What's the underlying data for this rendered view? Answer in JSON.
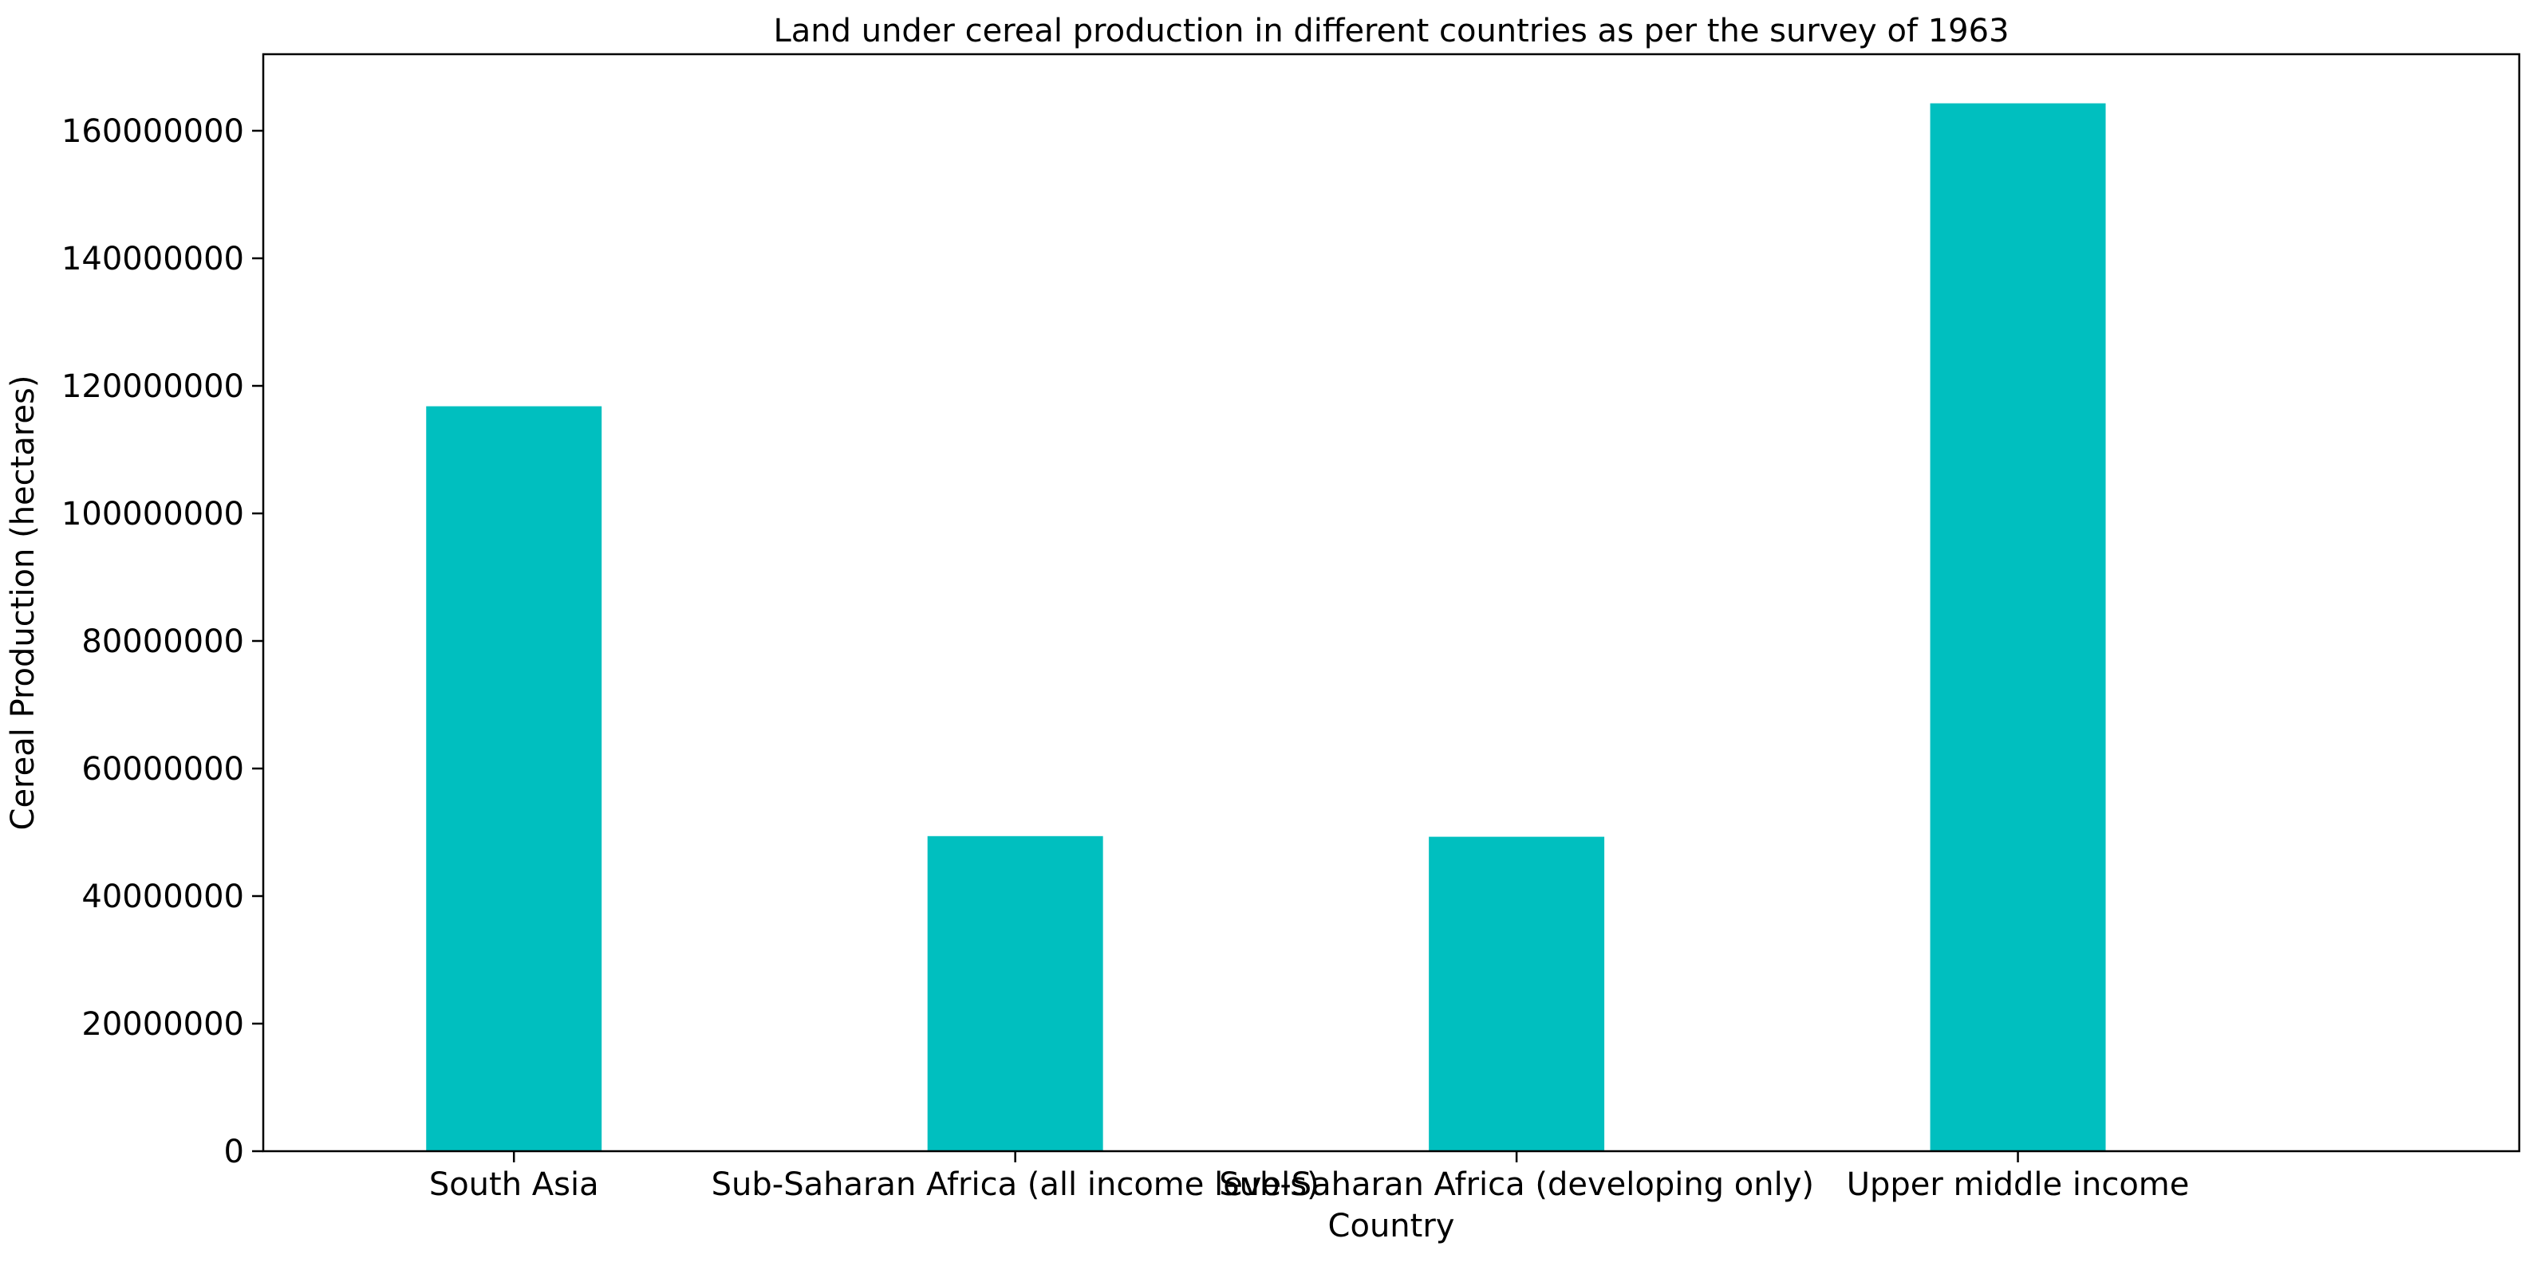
{
  "chart_data": {
    "type": "bar",
    "title": "Land under cereal  production in different countries as per the survey of 1963",
    "xlabel": "Country",
    "ylabel": "Cereal Production (hectares)",
    "categories": [
      "South Asia",
      "Sub-Saharan Africa (all income levels)",
      "Sub-Saharan Africa (developing only)",
      "Upper middle income"
    ],
    "values": [
      116800000,
      49400000,
      49300000,
      164300000
    ],
    "ylim": [
      0,
      172000000
    ],
    "yticks": [
      0,
      20000000,
      40000000,
      60000000,
      80000000,
      100000000,
      120000000,
      140000000,
      160000000
    ],
    "ytick_labels": [
      "0",
      "20000000",
      "40000000",
      "60000000",
      "80000000",
      "100000000",
      "120000000",
      "140000000",
      "160000000"
    ],
    "bar_color": "#00bfbf",
    "grid": false,
    "legend": "none"
  }
}
